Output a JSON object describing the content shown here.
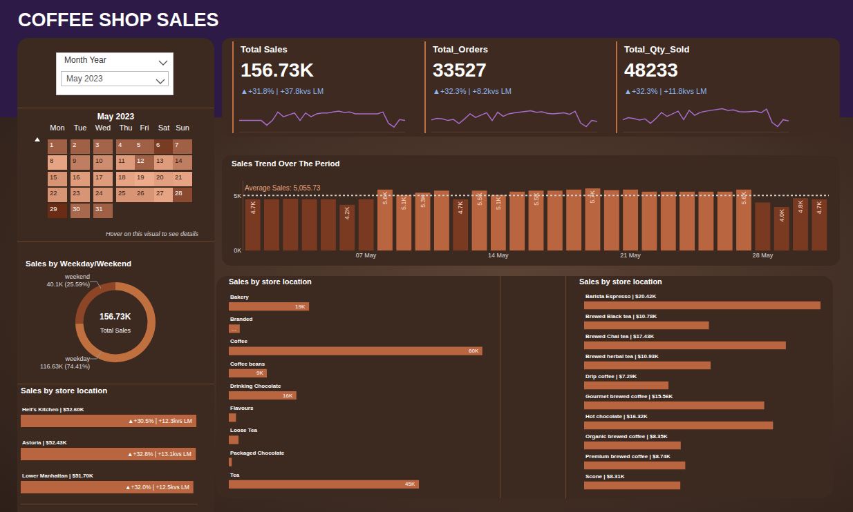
{
  "title": "COFFEE SHOP SALES",
  "slicer": {
    "label": "Month Year",
    "selected": "May 2023"
  },
  "kpis": [
    {
      "title": "Total Sales",
      "value": "156.73K",
      "change": "▲+31.8% | +37.8kvs LM",
      "sparkline": {
        "type": "line",
        "color": "#a86ccc",
        "tick_labels": false,
        "ylim": [
          3500,
          6500
        ],
        "yticks": [],
        "values": [
          4700,
          4700,
          4750,
          4700,
          4700,
          4200,
          4700,
          5600,
          5100,
          5300,
          5500,
          4700,
          5500,
          5100,
          5400,
          5500,
          5500,
          5600,
          5700,
          5550,
          5600,
          5400,
          5400,
          5400,
          5400,
          5400,
          5600,
          4400,
          4000,
          4800,
          4700
        ]
      }
    },
    {
      "title": "Total_Orders",
      "value": "33527",
      "change": "▲+32.3% | +8.2kvs LM",
      "sparkline": {
        "type": "line",
        "color": "#a86ccc",
        "tick_labels": false,
        "ylim": [
          780,
          1330
        ],
        "yticks": [],
        "values": [
          1010,
          1040,
          1030,
          1000,
          1020,
          940,
          1030,
          1130,
          1060,
          1100,
          1150,
          1000,
          1160,
          1080,
          1130,
          1150,
          1160,
          1170,
          1190,
          1160,
          1170,
          1140,
          1130,
          1140,
          1150,
          1120,
          1180,
          950,
          880,
          1000,
          980
        ]
      }
    },
    {
      "title": "Total_Qty_Sold",
      "value": "48233",
      "change": "▲+32.3% | +11.8kvs LM",
      "sparkline": {
        "type": "line",
        "color": "#a86ccc",
        "tick_labels": false,
        "ylim": [
          1150,
          1850
        ],
        "yticks": [],
        "values": [
          1450,
          1500,
          1480,
          1440,
          1470,
          1360,
          1480,
          1630,
          1530,
          1590,
          1660,
          1450,
          1680,
          1560,
          1630,
          1660,
          1680,
          1690,
          1720,
          1680,
          1690,
          1650,
          1640,
          1650,
          1660,
          1620,
          1710,
          1380,
          1280,
          1450,
          1420
        ]
      }
    }
  ],
  "calendar": {
    "title": "May 2023",
    "weekdays": [
      "Mon",
      "Tue",
      "Wed",
      "Thu",
      "Fri",
      "Sat",
      "Sun"
    ],
    "days": [
      1,
      2,
      3,
      4,
      5,
      6,
      7,
      8,
      9,
      10,
      11,
      12,
      13,
      14,
      15,
      16,
      17,
      18,
      19,
      20,
      21,
      22,
      23,
      24,
      25,
      26,
      27,
      28,
      29,
      30,
      31
    ],
    "note": "Hover on this visual to see details"
  },
  "chart_data": [
    {
      "type": "bar",
      "title": "Sales Trend Over The Period",
      "categories": [
        null,
        null,
        null,
        null,
        null,
        null,
        "07 May",
        null,
        null,
        null,
        null,
        null,
        null,
        "14 May",
        null,
        null,
        null,
        null,
        null,
        null,
        "21 May",
        null,
        null,
        null,
        null,
        null,
        null,
        "28 May",
        null,
        null,
        null
      ],
      "values": [
        4700,
        4700,
        4750,
        4700,
        4700,
        4200,
        4700,
        5600,
        5100,
        5300,
        5500,
        4700,
        5500,
        5100,
        5400,
        5500,
        5500,
        5600,
        5700,
        5550,
        5600,
        5400,
        5400,
        5400,
        5400,
        5400,
        5600,
        4400,
        4000,
        4800,
        4700
      ],
      "value_labels": [
        "4.7K",
        null,
        null,
        null,
        null,
        "4.2K",
        null,
        "5.6K",
        "5.1K",
        "5.3K",
        null,
        "4.7K",
        "5.5K",
        "5.1K",
        null,
        "5.5K",
        null,
        null,
        "5.7K",
        null,
        null,
        null,
        null,
        null,
        null,
        null,
        "5.6K",
        null,
        "4.0K",
        "4.8K",
        "4.7K"
      ],
      "colors": [
        "#7a3a22",
        "#7a3a22",
        "#7a3a22",
        "#7a3a22",
        "#7a3a22",
        "#7a3a22",
        "#7a3a22",
        "#b9653f",
        "#b9653f",
        "#b9653f",
        "#b9653f",
        "#7a3a22",
        "#b9653f",
        "#b9653f",
        "#b9653f",
        "#b9653f",
        "#b9653f",
        "#b9653f",
        "#b9653f",
        "#b9653f",
        "#b9653f",
        "#b9653f",
        "#b9653f",
        "#b9653f",
        "#b9653f",
        "#b9653f",
        "#b9653f",
        "#7a3a22",
        "#7a3a22",
        "#7a3a22",
        "#7a3a22"
      ],
      "data_labels": true,
      "grid": false,
      "ylim": [
        0,
        6400
      ],
      "yticks": [
        {
          "value": 0,
          "label": "0K"
        },
        {
          "value": 5000,
          "label": "5K"
        }
      ],
      "reference_line": {
        "value": 5055.73,
        "label": "Average Sales: 5,055.73"
      }
    },
    {
      "type": "pie",
      "title": "Sales by Weekday/Weekend",
      "categories": [
        "weekday",
        "weekend"
      ],
      "values": [
        116.63,
        40.1
      ],
      "value_labels": [
        "116.63K (74.41%)",
        "40.1K (25.59%)"
      ],
      "colors": [
        "#c0703f",
        "#8c4526"
      ],
      "data_labels": true,
      "annotations": [
        "156.73K",
        "Total Sales"
      ]
    },
    {
      "type": "bar",
      "orientation": "horizontal",
      "title": "Sales by store location",
      "categories": [
        "Hell's Kitchen | $52.60K",
        "Astoria | $52.43K",
        "Lower Manhattan | $51.70K"
      ],
      "values": [
        52.6,
        52.43,
        51.7
      ],
      "annotations": [
        "▲+30.5% | +12.3kvs LM",
        "▲+32.8% | +13.1kvs LM",
        "▲+32.0% | +12.5kvs LM"
      ],
      "color": "#b9653f",
      "xlim": [
        0,
        53
      ],
      "xticks": [],
      "tick_labels": false,
      "grid": false
    },
    {
      "type": "bar",
      "orientation": "horizontal",
      "title": "Sales by store location",
      "categories": [
        "Bakery",
        "Branded",
        "Coffee",
        "Coffee beans",
        "Drinking Chocolate",
        "Flavours",
        "Loose Tea",
        "Packaged Chocolate",
        "Tea"
      ],
      "values": [
        19,
        2.6,
        60,
        9,
        16,
        1.7,
        2.3,
        0.7,
        45
      ],
      "value_labels": [
        "19K",
        "...",
        "60K",
        "9K",
        "16K",
        null,
        null,
        null,
        "45K"
      ],
      "data_labels": true,
      "color": "#b9653f",
      "xlim": [
        0,
        62
      ],
      "xticks": [],
      "tick_labels": false,
      "grid": false
    },
    {
      "type": "bar",
      "orientation": "horizontal",
      "title": "Sales by store location",
      "categories": [
        "Barista Espresso | $20.42K",
        "Brewed Black tea | $10.78K",
        "Brewed Chai tea | $17.43K",
        "Brewed herbal tea | $10.93K",
        "Drip coffee | $7.29K",
        "Gourmet brewed coffee | $15.56K",
        "Hot chocolate | $16.32K",
        "Organic brewed coffee | $8.35K",
        "Premium brewed coffee | $8.74K",
        "Scone | $8.31K"
      ],
      "values": [
        20.42,
        10.78,
        17.43,
        10.93,
        7.29,
        15.56,
        16.32,
        8.35,
        8.74,
        8.31
      ],
      "color": "#b9653f",
      "xlim": [
        0,
        20.6
      ],
      "xticks": [],
      "tick_labels": false,
      "grid": false
    }
  ]
}
